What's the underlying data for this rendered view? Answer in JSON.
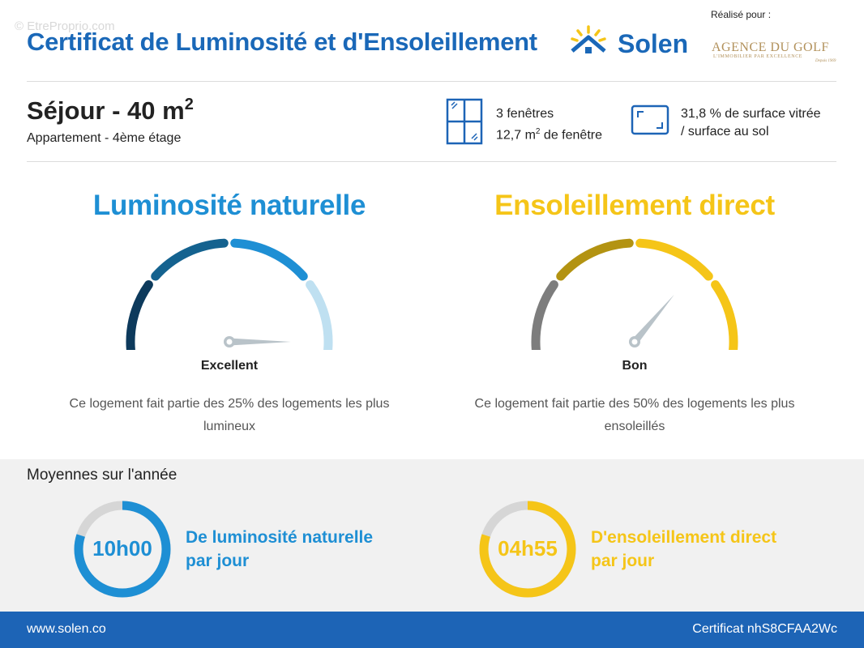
{
  "watermark": "© EtreProprio.com",
  "header": {
    "title": "Certificat de Luminosité et d'Ensoleillement",
    "brand": "Solen",
    "realise_label": "Réalisé pour :",
    "agency_name": "AGENCE DU GOLF",
    "agency_tagline": "L'IMMOBILIER PAR EXCELLENCE",
    "agency_year": "Depuis 1969"
  },
  "room": {
    "title": "Séjour - 40 m",
    "title_sup": "2",
    "subtitle": "Appartement - 4ème étage"
  },
  "windows": {
    "count_text": "3 fenêtres",
    "area_text": "12,7 m",
    "area_sup": "2",
    "area_suffix": " de fenêtre"
  },
  "surface": {
    "line1": "31,8 % de surface vitrée",
    "line2": "/ surface au sol"
  },
  "luminosite": {
    "heading": "Luminosité naturelle",
    "rating": "Excellent",
    "rating_level": 0.95,
    "description_line1": "Ce logement fait partie des 25% des logements les plus",
    "description_line2": "lumineux",
    "segment_colors": [
      "#0d3a5c",
      "#14628f",
      "#1e8fd4",
      "#bfe0f1"
    ]
  },
  "ensoleillement": {
    "heading": "Ensoleillement direct",
    "rating": "Bon",
    "rating_level": 0.7,
    "description_line1": "Ce logement fait partie des 50% des logements les plus",
    "description_line2": "ensoleillés",
    "segment_colors": [
      "#7d7d7d",
      "#b39312",
      "#f5c518",
      "#f5c518"
    ]
  },
  "averages": {
    "title": "Moyennes sur l'année",
    "luminosite": {
      "value": "10h00",
      "line1": "De luminosité naturelle",
      "line2": "par jour",
      "fill_fraction": 0.8,
      "color": "#1e8fd4"
    },
    "ensoleillement": {
      "value": "04h55",
      "line1": "D'ensoleillement direct",
      "line2": "par jour",
      "fill_fraction": 0.8,
      "color": "#f5c518"
    }
  },
  "footer": {
    "website": "www.solen.co",
    "certificate": "Certificat nhS8CFAA2Wc"
  }
}
